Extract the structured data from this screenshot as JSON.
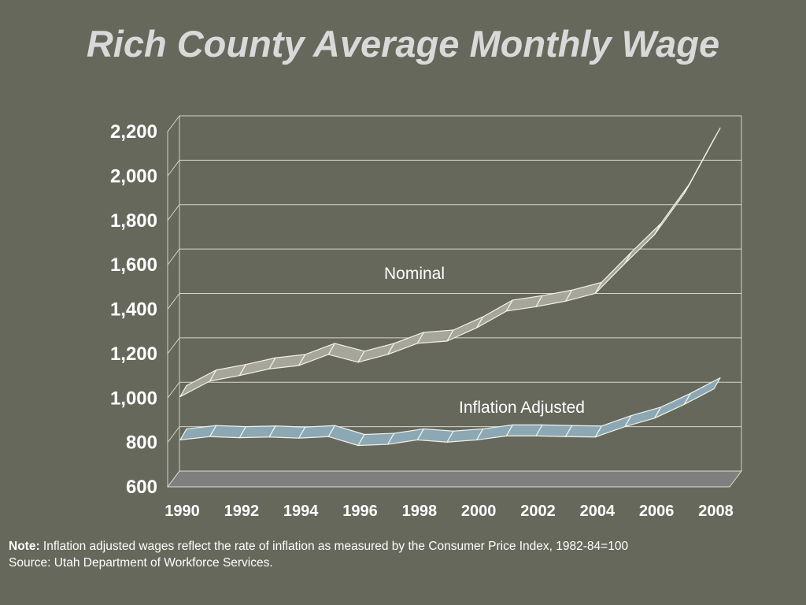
{
  "title": "Rich County Average Monthly Wage",
  "note": {
    "label": "Note:",
    "text": "Inflation adjusted wages reflect the rate of inflation as measured by the Consumer Price Index, 1982-84=100",
    "source": "Source: Utah Department of Workforce Services."
  },
  "colors": {
    "background": "#66685c",
    "nominal_ribbon": "#a6a69a",
    "inflation_ribbon": "#8ba8b4",
    "floor": "#7f7f7f"
  },
  "chart_data": {
    "type": "line",
    "style": "3d-ribbon",
    "x": [
      1990,
      1991,
      1992,
      1993,
      1994,
      1995,
      1996,
      1997,
      1998,
      1999,
      2000,
      2001,
      2002,
      2003,
      2004,
      2005,
      2006,
      2007,
      2008
    ],
    "x_tick_labels": [
      "1990",
      "1992",
      "1994",
      "1996",
      "1998",
      "2000",
      "2002",
      "2004",
      "2006",
      "2008"
    ],
    "ylim": [
      600,
      2200
    ],
    "y_tick_labels": [
      "2,200",
      "2,000",
      "1,800",
      "1,600",
      "1,400",
      "1,200",
      "1,000",
      "800",
      "600"
    ],
    "grid": true,
    "series": [
      {
        "name": "Nominal",
        "values": [
          985,
          1055,
          1080,
          1110,
          1125,
          1175,
          1140,
          1175,
          1225,
          1235,
          1295,
          1370,
          1390,
          1415,
          1450,
          1585,
          1715,
          1900,
          2145
        ]
      },
      {
        "name": "Inflation Adjusted",
        "values": [
          790,
          805,
          800,
          803,
          798,
          805,
          765,
          770,
          790,
          780,
          790,
          808,
          808,
          805,
          803,
          850,
          888,
          950,
          1020
        ]
      }
    ]
  }
}
